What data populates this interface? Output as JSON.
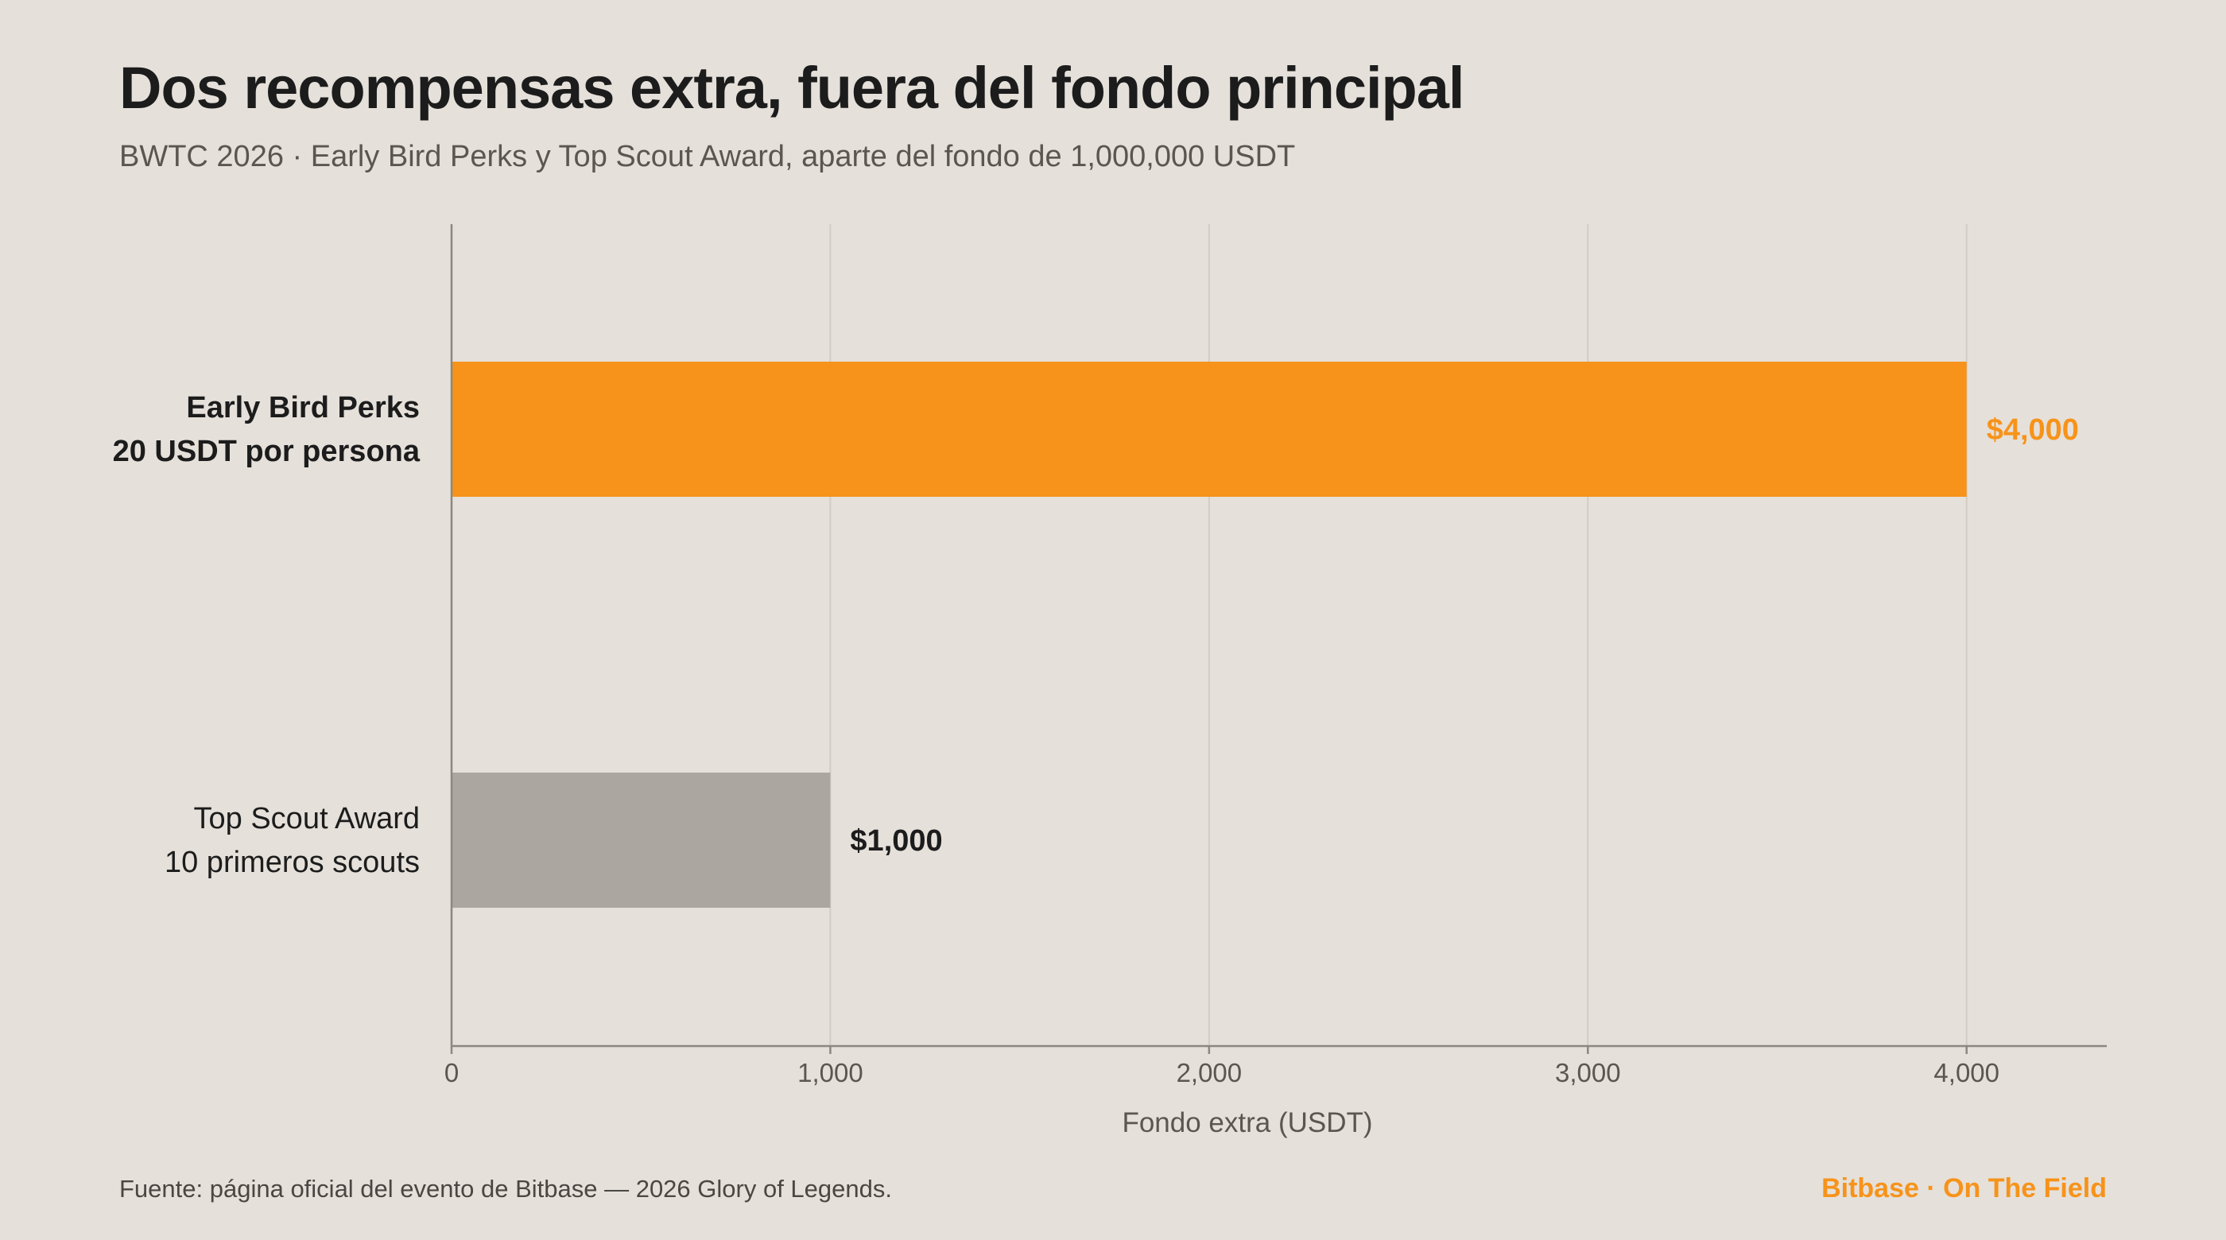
{
  "title": "Dos recompensas extra, fuera del fondo principal",
  "subtitle": "BWTC 2026 · Early Bird Perks y Top Scout Award, aparte del fondo de 1,000,000 USDT",
  "footer": {
    "source": "Fuente: página oficial del evento de Bitbase — 2026 Glory of Legends.",
    "brand": "Bitbase · On The Field"
  },
  "colors": {
    "background": "#e5e0da",
    "accent": "#f7931a",
    "muted_bar": "#aba6a0",
    "grid": "#d2ccc5",
    "axis": "#8c8780",
    "text_dark": "#1c1c1c",
    "text_muted": "#5a5651"
  },
  "chart_data": {
    "type": "bar",
    "orientation": "horizontal",
    "categories": [
      [
        "Early Bird Perks",
        "20 USDT por persona"
      ],
      [
        "Top Scout Award",
        "10 primeros scouts"
      ]
    ],
    "values": [
      4000,
      1000
    ],
    "value_labels": [
      "$4,000",
      "$1,000"
    ],
    "highlight": [
      true,
      false
    ],
    "xlabel": "Fondo extra (USDT)",
    "xlim": [
      0,
      4370
    ],
    "xticks": [
      0,
      1000,
      2000,
      3000,
      4000
    ],
    "xtick_labels": [
      "0",
      "1,000",
      "2,000",
      "3,000",
      "4,000"
    ],
    "grid": "vertical"
  }
}
